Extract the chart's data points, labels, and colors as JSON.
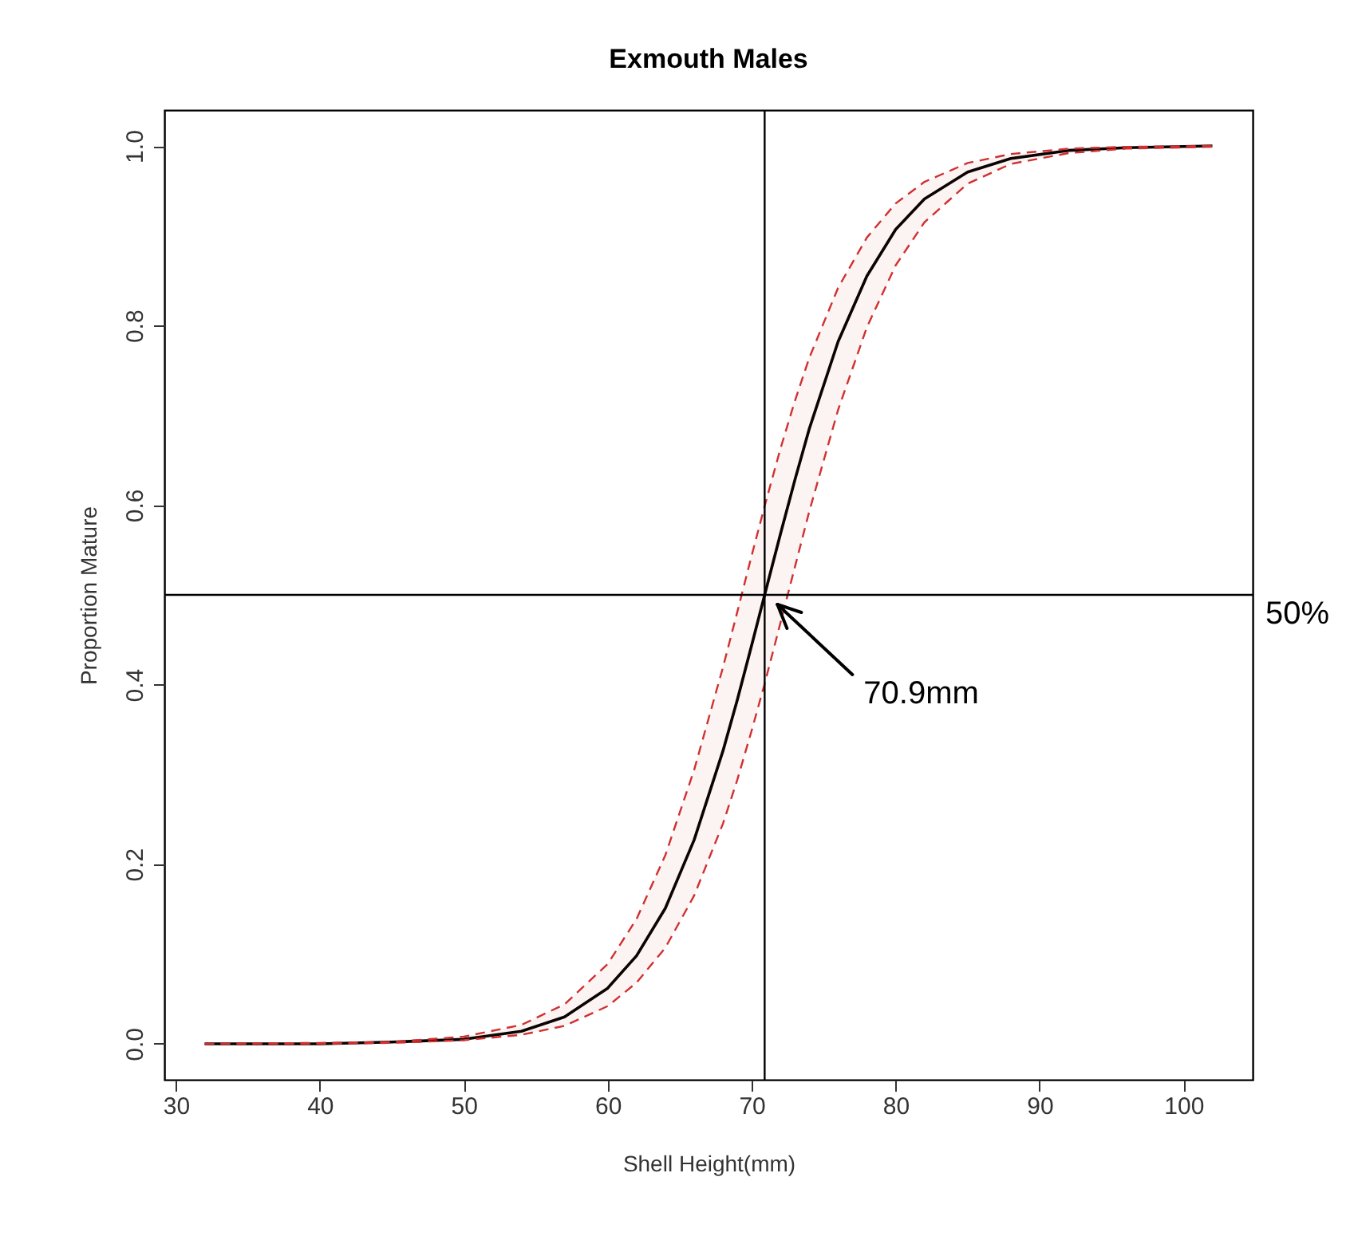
{
  "chart_data": {
    "type": "line",
    "title": "Exmouth Males",
    "xlabel": "Shell Height(mm)",
    "ylabel": "Proportion Mature",
    "x": [
      32,
      40,
      45,
      50,
      54,
      57,
      60,
      62,
      64,
      66,
      68,
      69,
      70,
      70.9,
      72,
      73,
      74,
      76,
      78,
      80,
      82,
      85,
      88,
      92,
      96,
      102
    ],
    "series": [
      {
        "color": "#000000",
        "line_style": "solid",
        "values": [
          0.0,
          0.0,
          0.002,
          0.005,
          0.014,
          0.03,
          0.062,
          0.098,
          0.151,
          0.227,
          0.326,
          0.383,
          0.444,
          0.5,
          0.568,
          0.628,
          0.685,
          0.782,
          0.855,
          0.907,
          0.941,
          0.971,
          0.986,
          0.995,
          0.998,
          1.0
        ],
        "upper": [
          0.0,
          0.001,
          0.002,
          0.008,
          0.021,
          0.044,
          0.089,
          0.139,
          0.21,
          0.305,
          0.419,
          0.481,
          0.544,
          0.599,
          0.663,
          0.716,
          0.764,
          0.842,
          0.898,
          0.936,
          0.96,
          0.981,
          0.991,
          0.997,
          0.999,
          1.0
        ],
        "lower": [
          0.0,
          0.0,
          0.001,
          0.004,
          0.01,
          0.02,
          0.042,
          0.068,
          0.107,
          0.165,
          0.245,
          0.294,
          0.349,
          0.401,
          0.469,
          0.531,
          0.593,
          0.706,
          0.798,
          0.867,
          0.915,
          0.958,
          0.98,
          0.992,
          0.997,
          0.999
        ]
      }
    ],
    "xlim": [
      29.2,
      104.8
    ],
    "ylim": [
      -0.04,
      1.04
    ],
    "xticks": [
      30,
      40,
      50,
      60,
      70,
      80,
      90,
      100
    ],
    "yticks": [
      {
        "value": 0,
        "label": "0.0"
      },
      0.2,
      0.4,
      0.6,
      0.8,
      {
        "value": 1,
        "label": "1.0"
      }
    ],
    "ref_lines": [
      {
        "axis": "x",
        "value": 70.9,
        "color": "#000000"
      },
      {
        "axis": "y",
        "value": 0.5,
        "label": "50%",
        "color": "#000000"
      }
    ],
    "annotations": [
      "70.9mm"
    ]
  }
}
